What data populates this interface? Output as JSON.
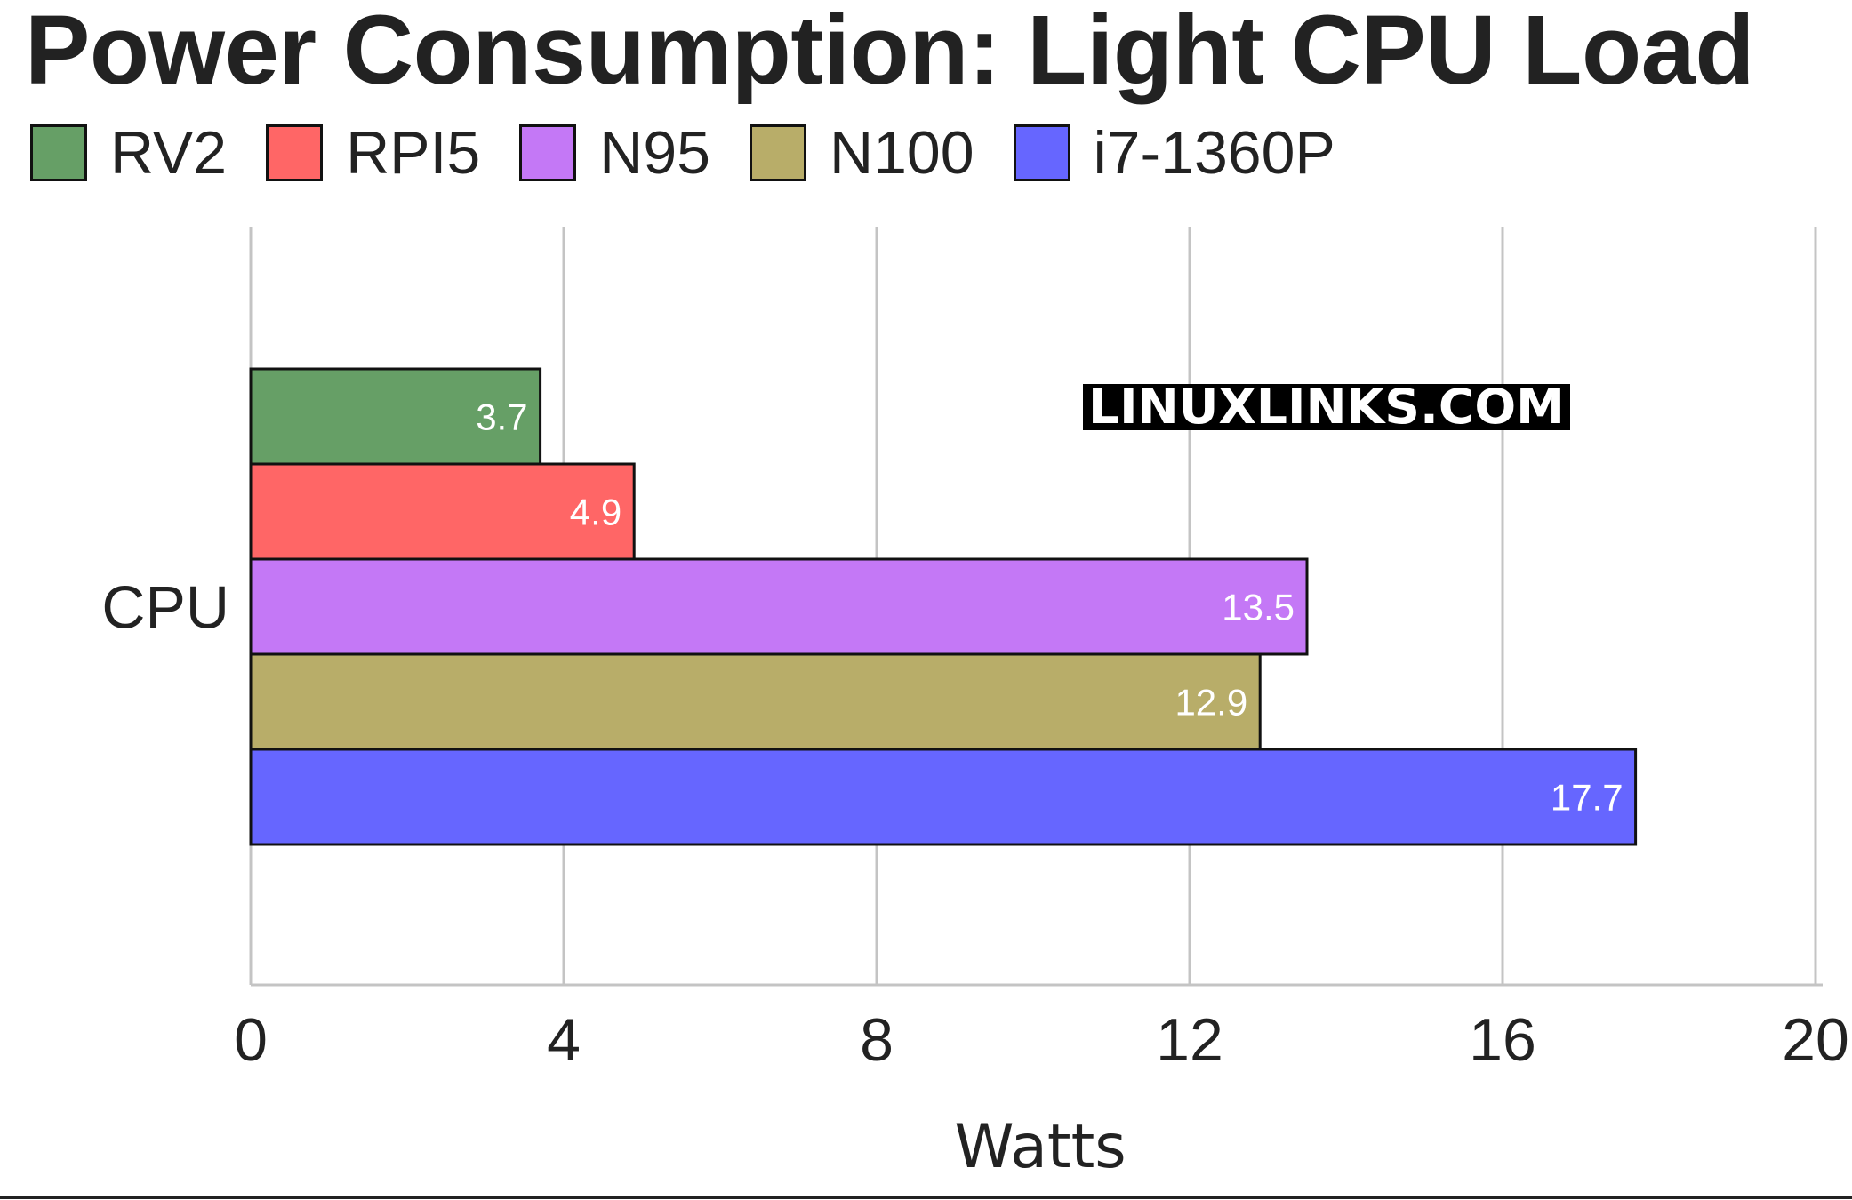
{
  "chart_data": {
    "type": "bar",
    "orientation": "horizontal",
    "title": "Power Consumption: Light CPU Load",
    "categories": [
      "CPU"
    ],
    "series": [
      {
        "name": "RV2",
        "values": [
          3.7
        ],
        "color": "#669f66"
      },
      {
        "name": "RPI5",
        "values": [
          4.9
        ],
        "color": "#ff6666"
      },
      {
        "name": "N95",
        "values": [
          13.5
        ],
        "color": "#c478f6"
      },
      {
        "name": "N100",
        "values": [
          12.9
        ],
        "color": "#b8ad69"
      },
      {
        "name": "i7-1360P",
        "values": [
          17.7
        ],
        "color": "#6666ff"
      }
    ],
    "xlabel": "Watts",
    "ylabel": "",
    "xlim": [
      0,
      20
    ],
    "xticks": [
      0,
      4,
      8,
      12,
      16,
      20
    ],
    "grid": true,
    "legend": "top-left",
    "watermark": "LINUXLINKS.COM"
  }
}
